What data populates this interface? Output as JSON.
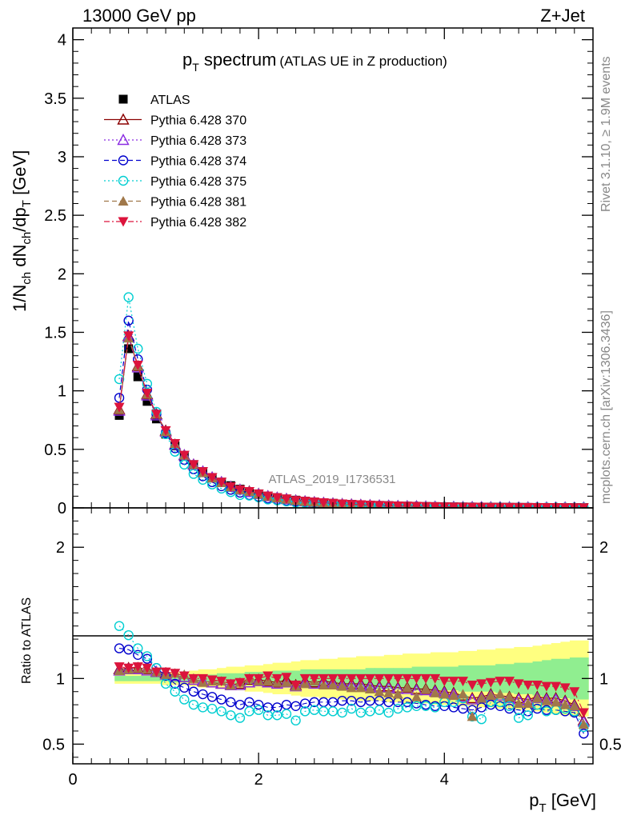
{
  "header": {
    "left": "13000 GeV pp",
    "right": "Z+Jet"
  },
  "side": {
    "rivet": "Rivet 3.1.10, ≥ 1.9M events",
    "mcplots": "mcplots.cern.ch [arXiv:1306.3436]"
  },
  "chart_data": [
    {
      "panel": "main",
      "type": "scatter",
      "title_main": "p",
      "title_sub": "T",
      "title_rest": " spectrum",
      "title_note": "(ATLAS UE in Z production)",
      "ylabel": "1/N_ch dN_ch/dp_T [GeV]",
      "ylim": [
        0,
        4.1
      ],
      "yticks": [
        0,
        0.5,
        1,
        1.5,
        2,
        2.5,
        3,
        3.5,
        4
      ],
      "ytick_labels": [
        "0",
        "0.5",
        "1",
        "1.5",
        "2",
        "2.5",
        "3",
        "3.5",
        "4"
      ],
      "xlim": [
        0,
        5.6
      ],
      "analysis_label": "ATLAS_2019_I1736531",
      "x": [
        0.5,
        0.6,
        0.7,
        0.8,
        0.9,
        1.0,
        1.1,
        1.2,
        1.3,
        1.4,
        1.5,
        1.6,
        1.7,
        1.8,
        1.9,
        2.0,
        2.1,
        2.2,
        2.3,
        2.4,
        2.5,
        2.6,
        2.7,
        2.8,
        2.9,
        3.0,
        3.1,
        3.2,
        3.3,
        3.4,
        3.5,
        3.6,
        3.7,
        3.8,
        3.9,
        4.0,
        4.1,
        4.2,
        4.3,
        4.4,
        4.5,
        4.6,
        4.7,
        4.8,
        4.9,
        5.0,
        5.1,
        5.2,
        5.3,
        5.4,
        5.5
      ],
      "series": [
        {
          "name": "ATLAS",
          "color": "#000000",
          "marker": "square-filled",
          "values": [
            0.79,
            1.36,
            1.12,
            0.91,
            0.76,
            0.63,
            0.53,
            0.44,
            0.37,
            0.31,
            0.26,
            0.22,
            0.19,
            0.16,
            0.14,
            0.12,
            0.1,
            0.088,
            0.076,
            0.066,
            0.057,
            0.05,
            0.044,
            0.039,
            0.034,
            0.03,
            0.027,
            0.024,
            0.021,
            0.019,
            0.017,
            0.015,
            0.014,
            0.012,
            0.011,
            0.01,
            0.009,
            0.008,
            0.0075,
            0.0068,
            0.0062,
            0.0056,
            0.0051,
            0.0047,
            0.0043,
            0.0039,
            0.0036,
            0.0033,
            0.003,
            0.0028,
            0.0026
          ]
        },
        {
          "name": "Pythia 6.428 370",
          "color": "#8b0000",
          "marker": "triangle-open",
          "line": "solid",
          "values": [
            0.84,
            1.47,
            1.21,
            0.97,
            0.8,
            0.66,
            0.54,
            0.45,
            0.37,
            0.31,
            0.26,
            0.22,
            0.18,
            0.155,
            0.14,
            0.12,
            0.1,
            0.087,
            0.076,
            0.063,
            0.056,
            0.049,
            0.043,
            0.038,
            0.033,
            0.029,
            0.026,
            0.023,
            0.02,
            0.018,
            0.016,
            0.014,
            0.013,
            0.011,
            0.01,
            0.009,
            0.008,
            0.007,
            0.0065,
            0.006,
            0.0055,
            0.005,
            0.0045,
            0.004,
            0.0037,
            0.0034,
            0.0031,
            0.0028,
            0.0025,
            0.0023,
            0.0021
          ]
        },
        {
          "name": "Pythia 6.428 373",
          "color": "#8a2be2",
          "marker": "triangle-open",
          "line": "dotted",
          "values": [
            0.83,
            1.46,
            1.2,
            0.96,
            0.79,
            0.65,
            0.54,
            0.45,
            0.37,
            0.31,
            0.26,
            0.22,
            0.18,
            0.155,
            0.135,
            0.118,
            0.1,
            0.086,
            0.075,
            0.062,
            0.055,
            0.048,
            0.042,
            0.037,
            0.032,
            0.028,
            0.025,
            0.022,
            0.02,
            0.018,
            0.016,
            0.014,
            0.013,
            0.011,
            0.01,
            0.009,
            0.008,
            0.007,
            0.0065,
            0.006,
            0.0055,
            0.005,
            0.0045,
            0.004,
            0.0037,
            0.0034,
            0.0031,
            0.0028,
            0.0025,
            0.0023,
            0.0021
          ]
        },
        {
          "name": "Pythia 6.428 374",
          "color": "#0000cd",
          "marker": "circle-open",
          "line": "dashed",
          "values": [
            0.94,
            1.6,
            1.27,
            1.01,
            0.8,
            0.64,
            0.51,
            0.41,
            0.33,
            0.27,
            0.22,
            0.185,
            0.155,
            0.13,
            0.11,
            0.095,
            0.08,
            0.069,
            0.06,
            0.052,
            0.046,
            0.041,
            0.036,
            0.032,
            0.028,
            0.025,
            0.022,
            0.02,
            0.018,
            0.016,
            0.014,
            0.013,
            0.012,
            0.01,
            0.009,
            0.008,
            0.0072,
            0.0065,
            0.006,
            0.0055,
            0.005,
            0.0045,
            0.004,
            0.0036,
            0.0033,
            0.003,
            0.0027,
            0.0025,
            0.0023,
            0.0021,
            0.0015
          ]
        },
        {
          "name": "Pythia 6.428 375",
          "color": "#00ced1",
          "marker": "circle-open",
          "line": "dotted",
          "values": [
            1.1,
            1.8,
            1.36,
            1.06,
            0.82,
            0.63,
            0.48,
            0.37,
            0.29,
            0.24,
            0.2,
            0.165,
            0.135,
            0.11,
            0.105,
            0.09,
            0.072,
            0.064,
            0.055,
            0.045,
            0.043,
            0.038,
            0.033,
            0.029,
            0.025,
            0.023,
            0.02,
            0.018,
            0.016,
            0.014,
            0.013,
            0.012,
            0.011,
            0.0095,
            0.0086,
            0.0082,
            0.0074,
            0.0068,
            0.0053,
            0.0047,
            0.0051,
            0.0046,
            0.004,
            0.0033,
            0.0031,
            0.0031,
            0.0027,
            0.0025,
            0.0023,
            0.0021,
            0.0017
          ]
        },
        {
          "name": "Pythia 6.428 381",
          "color": "#a0784a",
          "marker": "triangle-filled",
          "line": "dashed",
          "values": [
            0.84,
            1.45,
            1.21,
            0.97,
            0.8,
            0.65,
            0.55,
            0.45,
            0.37,
            0.3,
            0.255,
            0.215,
            0.18,
            0.155,
            0.14,
            0.118,
            0.098,
            0.085,
            0.074,
            0.062,
            0.055,
            0.049,
            0.042,
            0.037,
            0.032,
            0.028,
            0.025,
            0.022,
            0.019,
            0.017,
            0.015,
            0.014,
            0.012,
            0.011,
            0.0098,
            0.0088,
            0.0078,
            0.007,
            0.0053,
            0.0058,
            0.0054,
            0.0049,
            0.0044,
            0.0038,
            0.0035,
            0.0033,
            0.003,
            0.0027,
            0.0024,
            0.0022,
            0.0017
          ]
        },
        {
          "name": "Pythia 6.428 382",
          "color": "#dc143c",
          "marker": "triangle-down-filled",
          "line": "dashdot",
          "values": [
            0.86,
            1.47,
            1.22,
            0.98,
            0.8,
            0.66,
            0.55,
            0.45,
            0.37,
            0.31,
            0.26,
            0.22,
            0.18,
            0.155,
            0.14,
            0.12,
            0.102,
            0.088,
            0.077,
            0.063,
            0.057,
            0.05,
            0.044,
            0.039,
            0.034,
            0.03,
            0.027,
            0.024,
            0.021,
            0.019,
            0.017,
            0.015,
            0.014,
            0.012,
            0.011,
            0.0098,
            0.0088,
            0.008,
            0.0071,
            0.0065,
            0.006,
            0.0055,
            0.005,
            0.0045,
            0.0041,
            0.0037,
            0.0034,
            0.0031,
            0.0028,
            0.0025,
            0.0019
          ]
        }
      ]
    },
    {
      "panel": "ratio",
      "type": "scatter",
      "ylabel": "Ratio to ATLAS",
      "ylim": [
        0.35,
        2.3
      ],
      "yticks": [
        0.5,
        1,
        2
      ],
      "ytick_labels": [
        "0.5",
        "1",
        "2"
      ],
      "xlim": [
        0,
        5.6
      ],
      "xticks": [
        0,
        2,
        4
      ],
      "xtick_labels": [
        "0",
        "2",
        "4"
      ],
      "xlabel_main": "p",
      "xlabel_sub": "T",
      "xlabel_rest": " [GeV]",
      "band_stat_upper": [
        1.02,
        1.02,
        1.02,
        1.02,
        1.02,
        1.02,
        1.03,
        1.03,
        1.03,
        1.03,
        1.03,
        1.04,
        1.04,
        1.04,
        1.05,
        1.05,
        1.05,
        1.06,
        1.06,
        1.06,
        1.07,
        1.07,
        1.07,
        1.07,
        1.07,
        1.07,
        1.07,
        1.08,
        1.08,
        1.08,
        1.08,
        1.08,
        1.09,
        1.09,
        1.09,
        1.09,
        1.09,
        1.1,
        1.1,
        1.1,
        1.1,
        1.11,
        1.11,
        1.12,
        1.12,
        1.13,
        1.14,
        1.15,
        1.15,
        1.16,
        1.16
      ],
      "band_total_upper": [
        1.04,
        1.04,
        1.04,
        1.04,
        1.04,
        1.05,
        1.05,
        1.05,
        1.06,
        1.07,
        1.07,
        1.08,
        1.09,
        1.09,
        1.1,
        1.1,
        1.11,
        1.12,
        1.12,
        1.13,
        1.14,
        1.14,
        1.15,
        1.15,
        1.16,
        1.16,
        1.17,
        1.17,
        1.17,
        1.18,
        1.18,
        1.19,
        1.19,
        1.19,
        1.2,
        1.2,
        1.2,
        1.21,
        1.21,
        1.22,
        1.22,
        1.23,
        1.23,
        1.24,
        1.24,
        1.25,
        1.26,
        1.27,
        1.28,
        1.29,
        1.29
      ],
      "series": [
        {
          "name": "Pythia 6.428 370",
          "values": [
            1.07,
            1.08,
            1.08,
            1.07,
            1.05,
            1.04,
            1.02,
            1.01,
            0.99,
            0.98,
            0.97,
            0.96,
            0.95,
            0.96,
            0.99,
            0.99,
            0.98,
            0.97,
            0.99,
            0.95,
            0.98,
            0.97,
            0.98,
            0.97,
            0.96,
            0.96,
            0.96,
            0.95,
            0.94,
            0.94,
            0.93,
            0.93,
            0.92,
            0.92,
            0.91,
            0.9,
            0.89,
            0.87,
            0.85,
            0.86,
            0.88,
            0.87,
            0.86,
            0.85,
            0.84,
            0.86,
            0.85,
            0.85,
            0.83,
            0.8,
            0.68
          ]
        },
        {
          "name": "Pythia 6.428 373",
          "values": [
            1.06,
            1.07,
            1.07,
            1.06,
            1.05,
            1.03,
            1.02,
            1.01,
            0.99,
            0.98,
            0.97,
            0.96,
            0.95,
            0.95,
            0.97,
            0.98,
            0.97,
            0.96,
            0.97,
            0.94,
            0.97,
            0.96,
            0.97,
            0.96,
            0.95,
            0.95,
            0.95,
            0.94,
            0.93,
            0.93,
            0.92,
            0.92,
            0.91,
            0.91,
            0.9,
            0.89,
            0.88,
            0.86,
            0.84,
            0.85,
            0.87,
            0.87,
            0.85,
            0.84,
            0.83,
            0.85,
            0.84,
            0.84,
            0.82,
            0.79,
            0.67
          ]
        },
        {
          "name": "Pythia 6.428 374",
          "values": [
            1.23,
            1.22,
            1.18,
            1.15,
            1.08,
            1.02,
            0.96,
            0.93,
            0.9,
            0.88,
            0.86,
            0.84,
            0.82,
            0.8,
            0.82,
            0.8,
            0.78,
            0.78,
            0.8,
            0.79,
            0.81,
            0.82,
            0.82,
            0.82,
            0.83,
            0.83,
            0.82,
            0.83,
            0.83,
            0.82,
            0.82,
            0.82,
            0.81,
            0.8,
            0.79,
            0.79,
            0.78,
            0.77,
            0.76,
            0.78,
            0.8,
            0.79,
            0.77,
            0.76,
            0.75,
            0.77,
            0.76,
            0.76,
            0.75,
            0.74,
            0.58
          ]
        },
        {
          "name": "Pythia 6.428 375",
          "values": [
            1.4,
            1.33,
            1.23,
            1.17,
            1.08,
            0.96,
            0.9,
            0.84,
            0.8,
            0.78,
            0.77,
            0.75,
            0.72,
            0.7,
            0.75,
            0.76,
            0.72,
            0.72,
            0.73,
            0.68,
            0.75,
            0.76,
            0.75,
            0.75,
            0.74,
            0.77,
            0.74,
            0.75,
            0.76,
            0.74,
            0.77,
            0.78,
            0.79,
            0.79,
            0.78,
            0.82,
            0.82,
            0.85,
            0.71,
            0.69,
            0.82,
            0.82,
            0.79,
            0.7,
            0.72,
            0.8,
            0.75,
            0.76,
            0.77,
            0.75,
            0.63
          ]
        },
        {
          "name": "Pythia 6.428 381",
          "values": [
            1.06,
            1.07,
            1.08,
            1.07,
            1.05,
            1.03,
            1.04,
            1.03,
            1.0,
            0.97,
            0.98,
            0.98,
            0.95,
            0.97,
            1.0,
            0.98,
            0.98,
            0.97,
            0.97,
            0.94,
            0.96,
            0.98,
            0.95,
            0.95,
            0.94,
            0.93,
            0.93,
            0.92,
            0.9,
            0.89,
            0.88,
            0.93,
            0.86,
            0.92,
            0.89,
            0.88,
            0.87,
            0.88,
            0.71,
            0.85,
            0.87,
            0.88,
            0.86,
            0.81,
            0.81,
            0.85,
            0.83,
            0.82,
            0.8,
            0.79,
            0.65
          ]
        },
        {
          "name": "Pythia 6.428 382",
          "values": [
            1.09,
            1.08,
            1.09,
            1.08,
            1.05,
            1.05,
            1.04,
            1.02,
            1.0,
            1.0,
            0.99,
            0.98,
            0.96,
            0.97,
            1.0,
            1.0,
            1.02,
            1.0,
            1.01,
            0.95,
            1.0,
            1.0,
            1.0,
            1.0,
            1.0,
            1.0,
            1.0,
            1.0,
            1.0,
            1.0,
            1.0,
            1.0,
            1.0,
            1.0,
            1.0,
            0.98,
            0.98,
            0.98,
            0.95,
            0.96,
            0.97,
            0.98,
            0.98,
            0.96,
            0.95,
            0.95,
            0.94,
            0.94,
            0.93,
            0.9,
            0.74
          ]
        }
      ]
    }
  ]
}
